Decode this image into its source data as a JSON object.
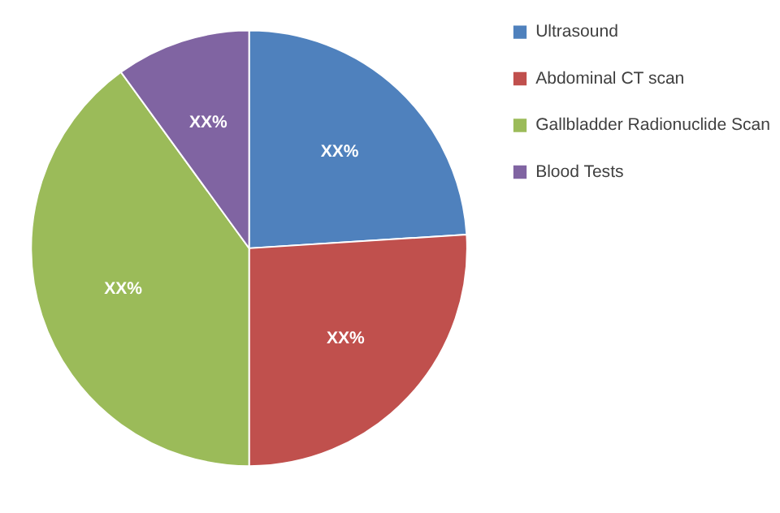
{
  "chart_data": {
    "type": "pie",
    "categories": [
      "Ultrasound",
      "Abdominal CT scan",
      "Gallbladder Radionuclide Scan",
      "Blood Tests"
    ],
    "values": [
      24,
      26,
      40,
      10
    ],
    "colors": [
      "#4f81bd",
      "#c0504d",
      "#9bbb59",
      "#8064a2"
    ],
    "value_labels": [
      "XX%",
      "XX%",
      "XX%",
      "XX%"
    ],
    "legend": "right"
  }
}
